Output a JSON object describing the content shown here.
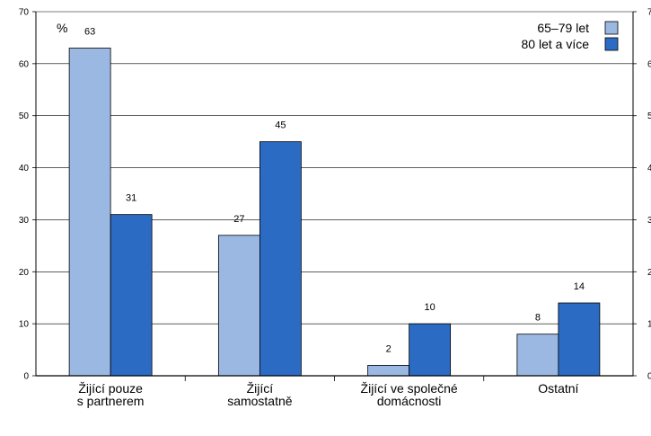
{
  "chart_data": {
    "type": "bar",
    "unit_label": "%",
    "categories": [
      [
        "Žijící pouze",
        "s partnerem"
      ],
      [
        "Žijící",
        "samostatně"
      ],
      [
        "Žijící ve společné",
        "domácnosti"
      ],
      [
        "Ostatní"
      ]
    ],
    "series": [
      {
        "name": "65–79 let",
        "values": [
          63,
          27,
          2,
          8
        ],
        "color": "#9ab8e2"
      },
      {
        "name": "80 let a více",
        "values": [
          31,
          45,
          10,
          14
        ],
        "color": "#2c6bc4"
      }
    ],
    "ylim": [
      0,
      70
    ],
    "yticks": [
      0,
      10,
      20,
      30,
      40,
      50,
      60,
      70
    ],
    "grid": true,
    "legend_position": "top-right"
  }
}
